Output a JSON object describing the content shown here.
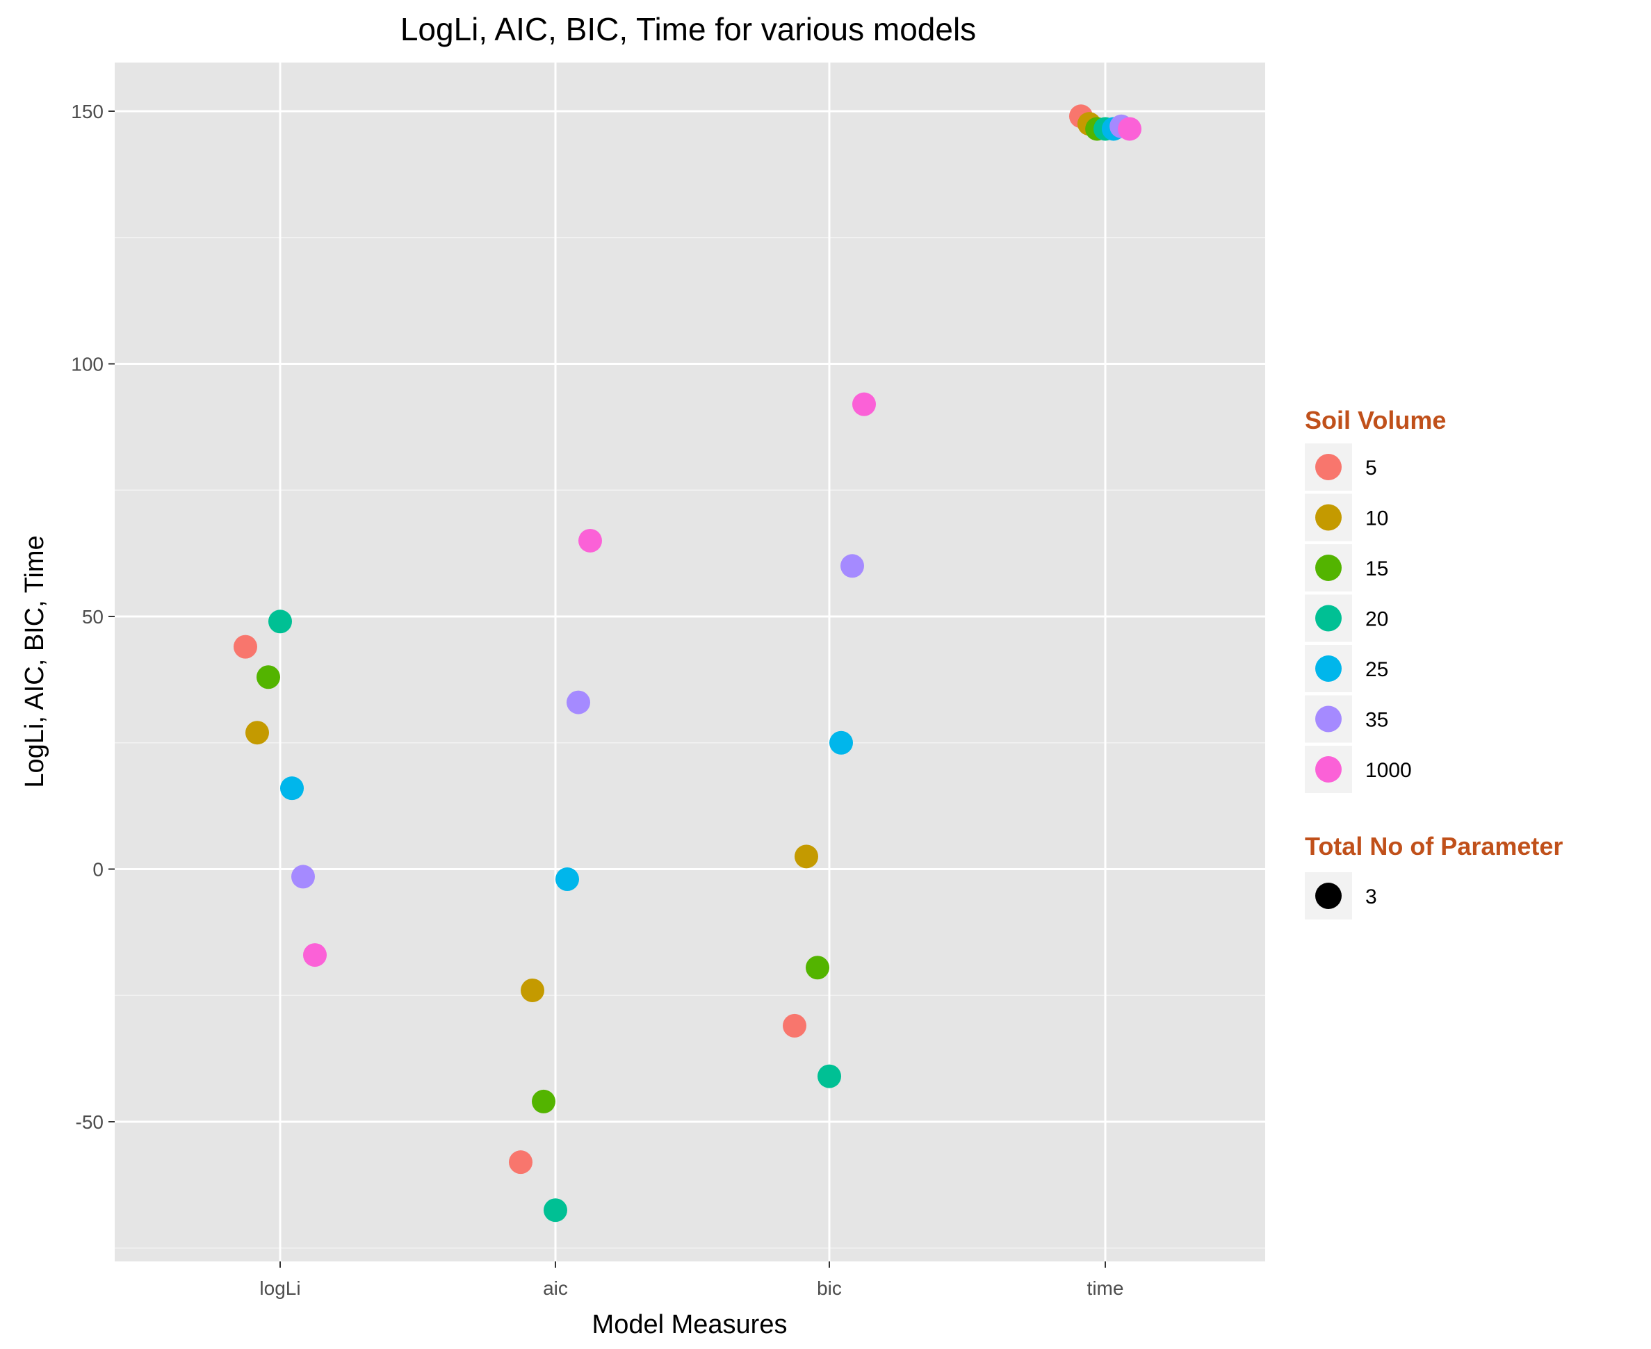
{
  "chart_data": {
    "type": "scatter",
    "title": "LogLi, AIC, BIC, Time for various models",
    "xlabel": "Model Measures",
    "ylabel": "LogLi, AIC, BIC, Time",
    "categories": [
      "logLi",
      "aic",
      "bic",
      "time"
    ],
    "ylim": [
      -75,
      160
    ],
    "y_ticks": [
      -50,
      0,
      50,
      100,
      150
    ],
    "y_tick_labels": [
      "-50",
      "0",
      "50",
      "100",
      "150"
    ],
    "grid": true,
    "legend_position": "right",
    "series": [
      {
        "name": "5",
        "color": "#F8766D",
        "values": [
          44,
          -58,
          -31,
          149
        ]
      },
      {
        "name": "10",
        "color": "#C49A00",
        "values": [
          27,
          -24,
          2.5,
          147.5
        ]
      },
      {
        "name": "15",
        "color": "#53B400",
        "values": [
          38,
          -46,
          -19.5,
          146.5
        ]
      },
      {
        "name": "20",
        "color": "#00C094",
        "values": [
          49,
          -67.5,
          -41,
          146.5
        ]
      },
      {
        "name": "25",
        "color": "#00B6EB",
        "values": [
          16,
          -2,
          25,
          146.5
        ]
      },
      {
        "name": "35",
        "color": "#A58AFF",
        "values": [
          -1.5,
          33,
          60,
          147
        ]
      },
      {
        "name": "1000",
        "color": "#FB61D7",
        "values": [
          -17,
          65,
          92,
          146.5
        ]
      }
    ],
    "legend": {
      "color_title": "Soil Volume",
      "size_title": "Total No of Parameter",
      "size_items": [
        "3"
      ]
    }
  }
}
